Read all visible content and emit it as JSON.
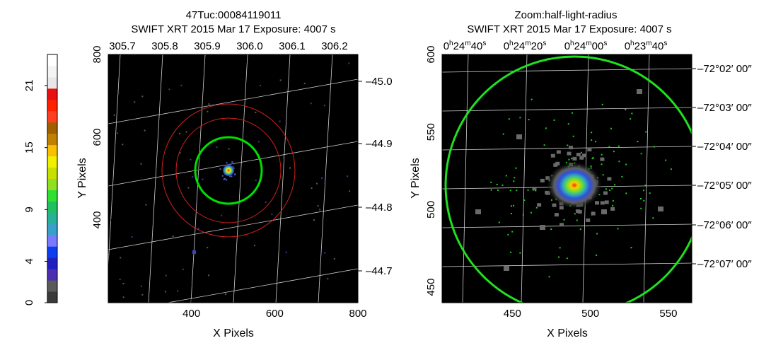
{
  "colorbar": {
    "tick_labels": [
      "0",
      "4",
      "9",
      "15",
      "21"
    ],
    "tick_values": [
      0,
      4,
      9,
      15,
      21
    ],
    "range": [
      0,
      24
    ],
    "colors": [
      "#3a3a3a",
      "#5a5a5a",
      "#4b2fb0",
      "#2020c0",
      "#0a3ef0",
      "#7a7aff",
      "#3aa0c8",
      "#28b098",
      "#20c060",
      "#30e030",
      "#90e020",
      "#c8e000",
      "#f0f000",
      "#f8c000",
      "#c08000",
      "#a06000",
      "#ff4020",
      "#ff2000",
      "#e81010",
      "#e8e8e8",
      "#f4f4f4",
      "#ffffff"
    ]
  },
  "panels": [
    {
      "title_line1": "47Tuc:00084119011",
      "title_line2": "SWIFT XRT   2015 Mar 17     Exposure: 4007 s",
      "xlabel": "X Pixels",
      "ylabel": "Y Pixels"
    },
    {
      "title_line1": "Zoom:half-light-radius",
      "title_line2": "SWIFT XRT   2015 Mar 17     Exposure: 4007 s",
      "xlabel": "X Pixels",
      "ylabel": "Y Pixels"
    }
  ],
  "chart_data": [
    {
      "type": "heatmap",
      "title": "47Tuc:00084119011",
      "subtitle": "SWIFT XRT   2015 Mar 17     Exposure: 4007 s",
      "xlabel": "X Pixels",
      "ylabel": "Y Pixels",
      "xlim": [
        200,
        800
      ],
      "ylim": [
        200,
        800
      ],
      "x_ticks": [
        400,
        600,
        800
      ],
      "y_ticks": [
        400,
        600,
        800
      ],
      "top_axis_ticks": [
        "305.7",
        "305.8",
        "305.9",
        "306.0",
        "306.1",
        "306.2"
      ],
      "top_axis_values": [
        305.7,
        305.8,
        305.9,
        306.0,
        306.1,
        306.2
      ],
      "right_axis_ticks": [
        "–45.0",
        "–44.9",
        "–44.8",
        "–44.7"
      ],
      "right_axis_values": [
        -45.0,
        -44.9,
        -44.8,
        -44.7
      ],
      "grid": true,
      "source_center": [
        483,
        534
      ],
      "circles": [
        {
          "color": "#00e000",
          "r": 80
        },
        {
          "color": "#cc2020",
          "r": 125
        },
        {
          "color": "#cc2020",
          "r": 160
        }
      ]
    },
    {
      "type": "heatmap",
      "title": "Zoom:half-light-radius",
      "subtitle": "SWIFT XRT   2015 Mar 17     Exposure: 4007 s",
      "xlabel": "X Pixels",
      "ylabel": "Y Pixels",
      "xlim": [
        405,
        565
      ],
      "ylim": [
        440,
        600
      ],
      "x_ticks": [
        450,
        500,
        550
      ],
      "y_ticks": [
        450,
        500,
        550,
        600
      ],
      "top_axis_ticks": [
        "0h24m40s",
        "0h24m20s",
        "0h24m00s",
        "0h23m40s"
      ],
      "right_axis_ticks": [
        "–72°02′ 00″",
        "–72°03′ 00″",
        "–72°04′ 00″",
        "–72°05′ 00″",
        "–72°06′ 00″",
        "–72°07′ 00″"
      ],
      "grid": true,
      "source_center": [
        489,
        520
      ],
      "circles": [
        {
          "color": "#00e000",
          "r": 80
        }
      ]
    }
  ]
}
